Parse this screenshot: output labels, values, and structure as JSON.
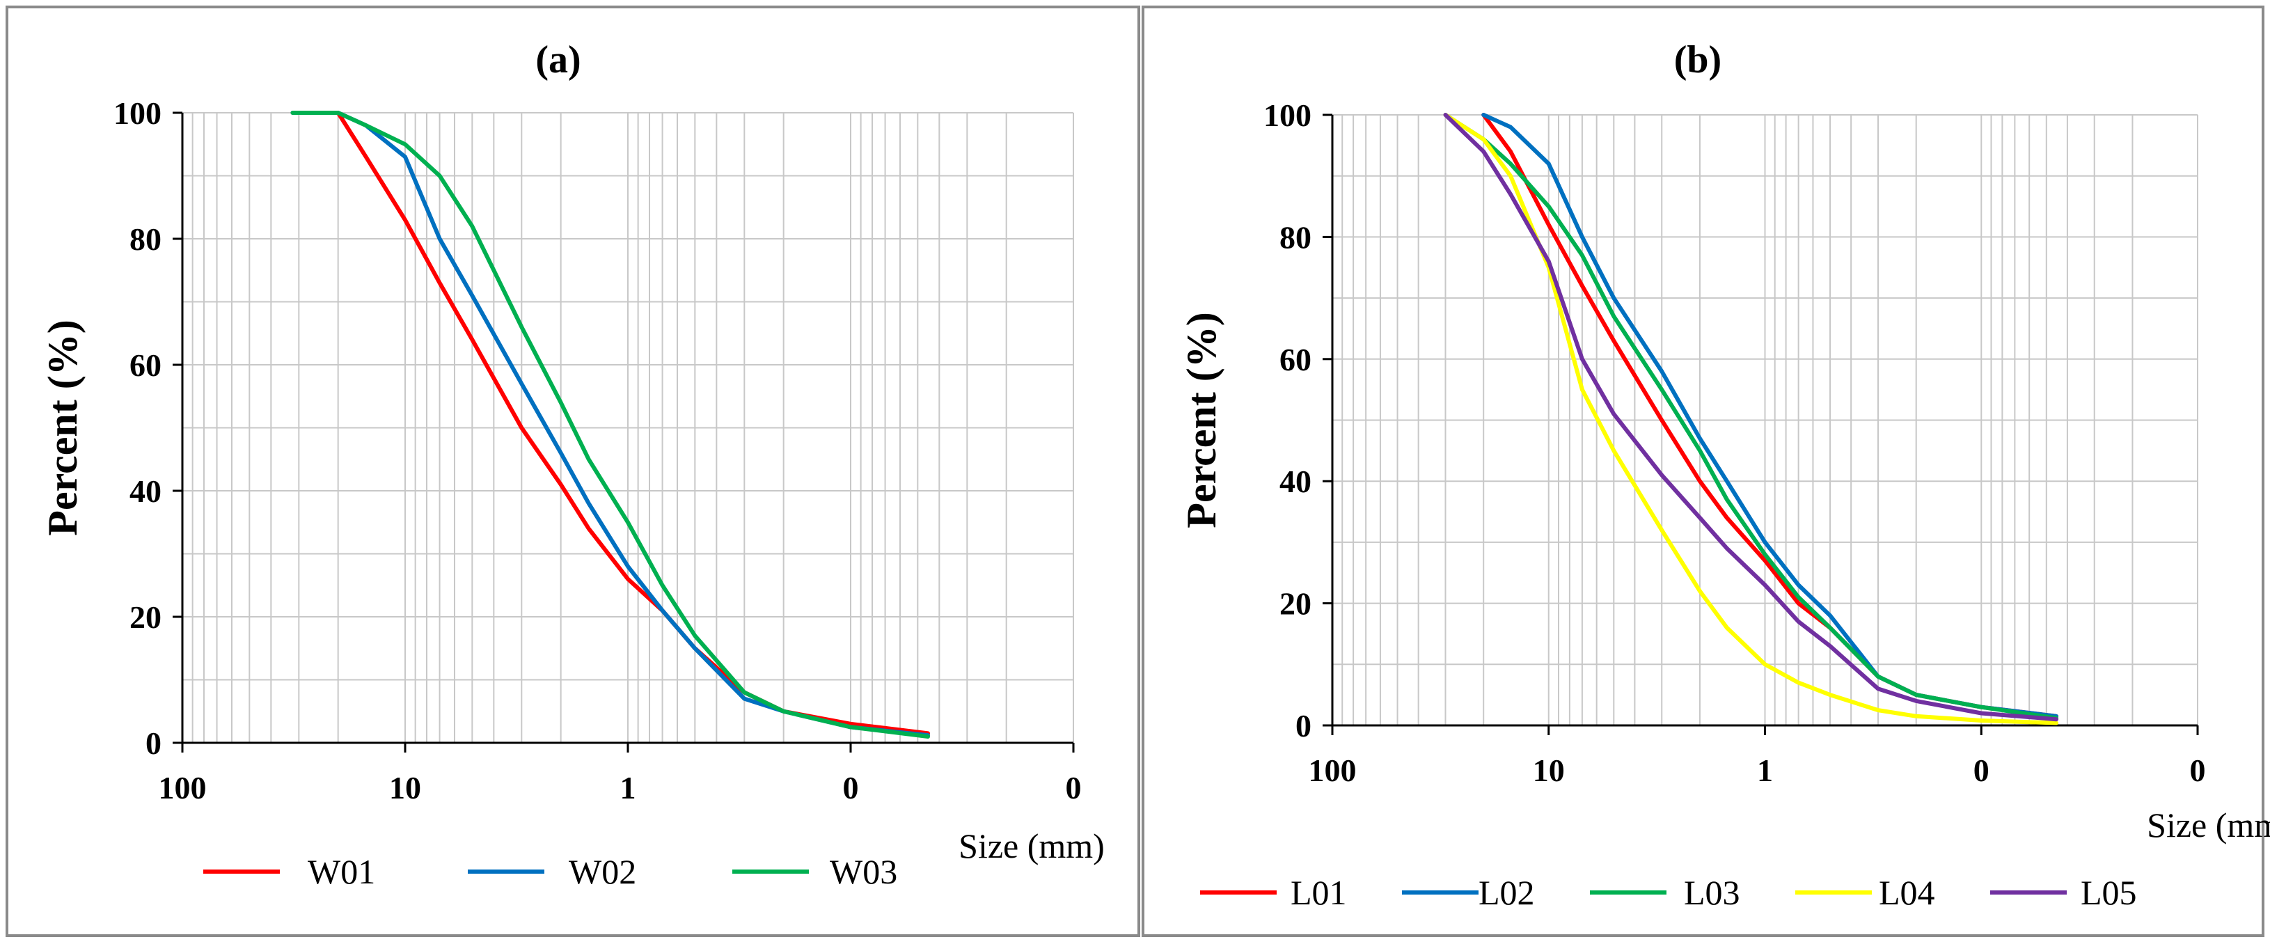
{
  "chart_data": [
    {
      "panel": "a",
      "type": "line",
      "title": "(a)",
      "xlabel": "Size (mm)",
      "ylabel": "Percent (%)",
      "xscale": "log-reversed",
      "xlim_log10": [
        2,
        -2
      ],
      "ylim": [
        0,
        100
      ],
      "grid": true,
      "legend_position": "bottom",
      "x_tick_labels": [
        "100",
        "10",
        "1",
        "0",
        "0"
      ],
      "y_tick_labels": [
        "0",
        "20",
        "40",
        "60",
        "80",
        "100"
      ],
      "series": [
        {
          "name": "W01",
          "color": "#ff0000",
          "points": [
            [
              20,
              100
            ],
            [
              15,
              93
            ],
            [
              10,
              83
            ],
            [
              7,
              73
            ],
            [
              5,
              64
            ],
            [
              3,
              50
            ],
            [
              2,
              41
            ],
            [
              1.5,
              34
            ],
            [
              1,
              26
            ],
            [
              0.7,
              21
            ],
            [
              0.5,
              15
            ],
            [
              0.3,
              8
            ],
            [
              0.2,
              5
            ],
            [
              0.1,
              3
            ],
            [
              0.045,
              1.5
            ]
          ]
        },
        {
          "name": "W02",
          "color": "#0070c0",
          "points": [
            [
              32,
              100
            ],
            [
              20,
              100
            ],
            [
              15,
              98
            ],
            [
              10,
              93
            ],
            [
              7,
              80
            ],
            [
              5,
              71
            ],
            [
              3,
              57
            ],
            [
              2,
              46
            ],
            [
              1.5,
              38
            ],
            [
              1,
              28
            ],
            [
              0.7,
              21
            ],
            [
              0.5,
              15
            ],
            [
              0.3,
              7
            ],
            [
              0.2,
              5
            ],
            [
              0.1,
              2.5
            ],
            [
              0.045,
              1.2
            ]
          ]
        },
        {
          "name": "W03",
          "color": "#00b050",
          "points": [
            [
              32,
              100
            ],
            [
              20,
              100
            ],
            [
              15,
              98
            ],
            [
              10,
              95
            ],
            [
              7,
              90
            ],
            [
              5,
              82
            ],
            [
              3,
              66
            ],
            [
              2,
              54
            ],
            [
              1.5,
              45
            ],
            [
              1,
              35
            ],
            [
              0.7,
              25
            ],
            [
              0.5,
              17
            ],
            [
              0.3,
              8
            ],
            [
              0.2,
              5
            ],
            [
              0.1,
              2.5
            ],
            [
              0.045,
              1
            ]
          ]
        }
      ]
    },
    {
      "panel": "b",
      "type": "line",
      "title": "(b)",
      "xlabel": "Size (mm)",
      "ylabel": "Percent (%)",
      "xscale": "log-reversed",
      "xlim_log10": [
        2,
        -2
      ],
      "ylim": [
        0,
        100
      ],
      "grid": true,
      "legend_position": "bottom",
      "x_tick_labels": [
        "100",
        "10",
        "1",
        "0",
        "0"
      ],
      "y_tick_labels": [
        "0",
        "20",
        "40",
        "60",
        "80",
        "100"
      ],
      "series": [
        {
          "name": "L01",
          "color": "#ff0000",
          "points": [
            [
              20,
              100
            ],
            [
              15,
              94
            ],
            [
              10,
              82
            ],
            [
              7,
              72
            ],
            [
              5,
              63
            ],
            [
              3,
              50
            ],
            [
              2,
              40
            ],
            [
              1.5,
              34
            ],
            [
              1,
              27
            ],
            [
              0.7,
              20
            ],
            [
              0.5,
              16
            ],
            [
              0.3,
              8
            ],
            [
              0.2,
              5
            ],
            [
              0.1,
              3
            ],
            [
              0.045,
              1.5
            ]
          ]
        },
        {
          "name": "L02",
          "color": "#0070c0",
          "points": [
            [
              20,
              100
            ],
            [
              15,
              98
            ],
            [
              10,
              92
            ],
            [
              7,
              80
            ],
            [
              5,
              70
            ],
            [
              3,
              58
            ],
            [
              2,
              47
            ],
            [
              1.5,
              40
            ],
            [
              1,
              30
            ],
            [
              0.7,
              23
            ],
            [
              0.5,
              18
            ],
            [
              0.3,
              8
            ],
            [
              0.2,
              5
            ],
            [
              0.1,
              3
            ],
            [
              0.045,
              1.5
            ]
          ]
        },
        {
          "name": "L03",
          "color": "#00b050",
          "points": [
            [
              30,
              100
            ],
            [
              20,
              96
            ],
            [
              15,
              92
            ],
            [
              10,
              85
            ],
            [
              7,
              77
            ],
            [
              5,
              67
            ],
            [
              3,
              55
            ],
            [
              2,
              45
            ],
            [
              1.5,
              37
            ],
            [
              1,
              28
            ],
            [
              0.7,
              21
            ],
            [
              0.5,
              16
            ],
            [
              0.3,
              8
            ],
            [
              0.2,
              5
            ],
            [
              0.1,
              3
            ],
            [
              0.045,
              1.2
            ]
          ]
        },
        {
          "name": "L04",
          "color": "#ffff00",
          "points": [
            [
              30,
              100
            ],
            [
              20,
              96
            ],
            [
              15,
              90
            ],
            [
              10,
              75
            ],
            [
              7,
              55
            ],
            [
              5,
              45
            ],
            [
              3,
              32
            ],
            [
              2,
              22
            ],
            [
              1.5,
              16
            ],
            [
              1,
              10
            ],
            [
              0.7,
              7
            ],
            [
              0.5,
              5
            ],
            [
              0.3,
              2.5
            ],
            [
              0.2,
              1.5
            ],
            [
              0.1,
              0.8
            ],
            [
              0.045,
              0.4
            ]
          ]
        },
        {
          "name": "L05",
          "color": "#7030a0",
          "points": [
            [
              30,
              100
            ],
            [
              20,
              94
            ],
            [
              15,
              87
            ],
            [
              10,
              76
            ],
            [
              7,
              60
            ],
            [
              5,
              51
            ],
            [
              3,
              41
            ],
            [
              2,
              34
            ],
            [
              1.5,
              29
            ],
            [
              1,
              23
            ],
            [
              0.7,
              17
            ],
            [
              0.5,
              13
            ],
            [
              0.3,
              6
            ],
            [
              0.2,
              4
            ],
            [
              0.1,
              2
            ],
            [
              0.045,
              1
            ]
          ]
        }
      ]
    }
  ]
}
